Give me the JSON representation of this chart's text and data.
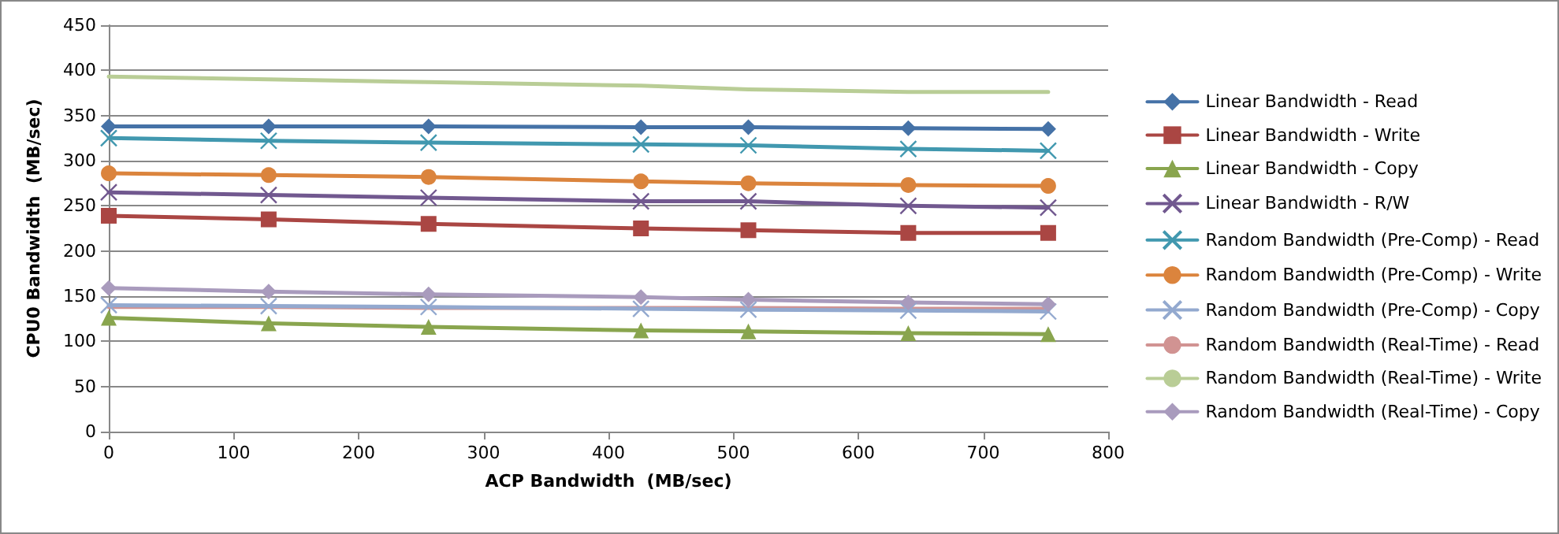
{
  "chart_data": {
    "type": "line",
    "xlabel": "ACP Bandwidth  (MB/sec)",
    "ylabel": "CPU0 Bandwidth  (MB/sec)",
    "x": [
      0,
      128,
      256,
      426,
      512,
      640,
      752
    ],
    "xlim": [
      0,
      800
    ],
    "xticks": [
      0,
      100,
      200,
      300,
      400,
      500,
      600,
      700,
      800
    ],
    "ylim": [
      0,
      450
    ],
    "yticks": [
      0,
      50,
      100,
      150,
      200,
      250,
      300,
      350,
      400,
      450
    ],
    "grid": "y",
    "legend": "right",
    "line_style": "solid",
    "series": [
      {
        "name": "Linear Bandwidth - Read",
        "color": "#4572a7",
        "marker": "diamond",
        "values": [
          338,
          338,
          338,
          337,
          337,
          336,
          335
        ]
      },
      {
        "name": "Linear Bandwidth - Write",
        "color": "#aa4643",
        "marker": "square",
        "values": [
          239,
          235,
          230,
          225,
          223,
          220,
          220
        ]
      },
      {
        "name": "Linear Bandwidth - Copy",
        "color": "#89a54e",
        "marker": "triangle",
        "values": [
          126,
          120,
          116,
          112,
          111,
          109,
          108
        ]
      },
      {
        "name": "Linear Bandwidth - R/W",
        "color": "#71588f",
        "marker": "cross",
        "values": [
          265,
          262,
          259,
          255,
          255,
          250,
          248
        ]
      },
      {
        "name": "Random Bandwidth (Pre-Comp) - Read",
        "color": "#4198af",
        "marker": "cross",
        "values": [
          325,
          322,
          320,
          318,
          317,
          313,
          311
        ]
      },
      {
        "name": "Random Bandwidth (Pre-Comp) - Write",
        "color": "#db843d",
        "marker": "circle",
        "values": [
          286,
          284,
          282,
          277,
          275,
          273,
          272
        ]
      },
      {
        "name": "Random Bandwidth (Pre-Comp) - Copy",
        "color": "#93a9cf",
        "marker": "cross",
        "values": [
          140,
          139,
          138,
          136,
          135,
          134,
          133
        ]
      },
      {
        "name": "Random Bandwidth (Real-Time) - Read",
        "color": "#d19392",
        "marker": "none",
        "values": [
          138,
          138,
          137,
          137,
          137,
          136,
          136
        ]
      },
      {
        "name": "Random Bandwidth (Real-Time) - Write",
        "color": "#b9cd96",
        "marker": "none",
        "values": [
          393,
          390,
          387,
          383,
          379,
          376,
          376
        ]
      },
      {
        "name": "Random Bandwidth (Real-Time) - Copy",
        "color": "#a99bbd",
        "marker": "diamond",
        "values": [
          159,
          155,
          152,
          149,
          146,
          143,
          141
        ]
      }
    ]
  }
}
